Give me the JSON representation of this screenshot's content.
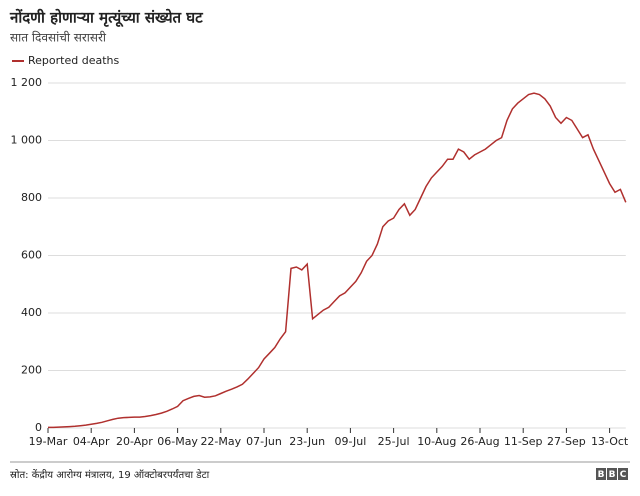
{
  "chart_data": {
    "type": "line",
    "title": "नोंदणी होणाऱ्या मृत्यूंच्या संख्येत घट",
    "subtitle": "सात दिवसांची सरासरी",
    "source": "स्रोत: केंद्रीय आरोग्य मंत्रालय, 19 ऑक्टोबरपर्यंतचा डेटा",
    "logo": [
      "B",
      "B",
      "C"
    ],
    "categories": [
      "19-Mar",
      null,
      null,
      null,
      null,
      null,
      null,
      null,
      "04-Apr",
      null,
      null,
      null,
      null,
      null,
      null,
      null,
      "20-Apr",
      null,
      null,
      null,
      null,
      null,
      null,
      null,
      "06-May",
      null,
      null,
      null,
      null,
      null,
      null,
      null,
      "22-May",
      null,
      null,
      null,
      null,
      null,
      null,
      null,
      "07-Jun",
      null,
      null,
      null,
      null,
      null,
      null,
      null,
      "23-Jun",
      null,
      null,
      null,
      null,
      null,
      null,
      null,
      "09-Jul",
      null,
      null,
      null,
      null,
      null,
      null,
      null,
      "25-Jul",
      null,
      null,
      null,
      null,
      null,
      null,
      null,
      "10-Aug",
      null,
      null,
      null,
      null,
      null,
      null,
      null,
      "26-Aug",
      null,
      null,
      null,
      null,
      null,
      null,
      null,
      "11-Sep",
      null,
      null,
      null,
      null,
      null,
      null,
      null,
      "27-Sep",
      null,
      null,
      null,
      null,
      null,
      null,
      null,
      "13-Oct",
      null,
      null,
      null
    ],
    "series": [
      {
        "name": "Reported deaths",
        "color": "#b0302e",
        "values": [
          2,
          2,
          3,
          4,
          5,
          6,
          8,
          10,
          13,
          16,
          20,
          25,
          30,
          34,
          36,
          37,
          38,
          38,
          40,
          43,
          47,
          52,
          58,
          66,
          75,
          95,
          103,
          110,
          113,
          107,
          108,
          112,
          120,
          128,
          135,
          143,
          152,
          170,
          190,
          210,
          240,
          260,
          280,
          310,
          335,
          555,
          560,
          550,
          570,
          380,
          395,
          410,
          420,
          440,
          460,
          470,
          490,
          510,
          540,
          580,
          600,
          640,
          700,
          720,
          730,
          760,
          780,
          740,
          760,
          800,
          840,
          870,
          890,
          910,
          935,
          935,
          970,
          960,
          935,
          950,
          960,
          970,
          985,
          1000,
          1010,
          1070,
          1110,
          1130,
          1145,
          1160,
          1165,
          1160,
          1145,
          1120,
          1080,
          1060,
          1080,
          1070,
          1040,
          1010,
          1020,
          970,
          930,
          890,
          850,
          820,
          830,
          785
        ]
      }
    ],
    "ylim": [
      0,
      1200
    ],
    "yticks": [
      0,
      200,
      400,
      600,
      800,
      {
        "value": 1000,
        "label": "1 000"
      },
      {
        "value": 1200,
        "label": "1 200"
      }
    ],
    "grid": true,
    "legend": "top-left"
  }
}
